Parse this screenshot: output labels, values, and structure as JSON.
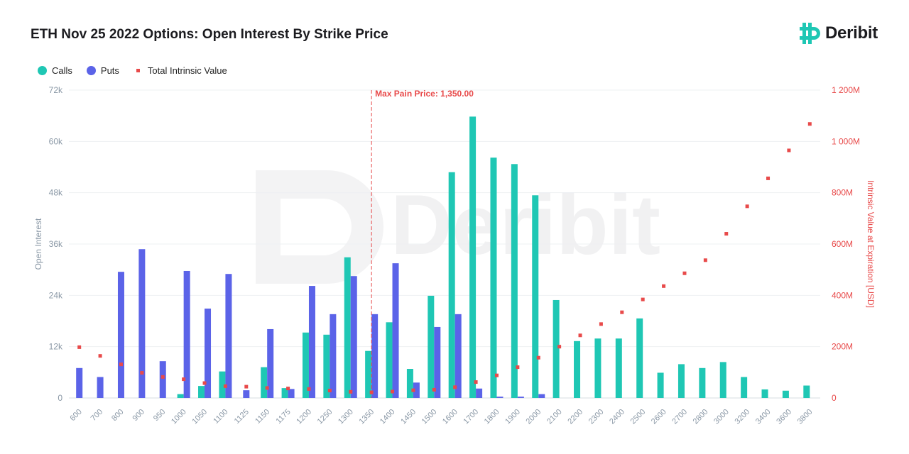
{
  "chart_data": {
    "type": "bar",
    "title": "ETH Nov 25 2022 Options: Open Interest By Strike Price",
    "brand": "Deribit",
    "categories": [
      "600",
      "700",
      "800",
      "900",
      "950",
      "1000",
      "1050",
      "1100",
      "1125",
      "1150",
      "1175",
      "1200",
      "1250",
      "1300",
      "1350",
      "1400",
      "1450",
      "1500",
      "1600",
      "1700",
      "1800",
      "1900",
      "2000",
      "2100",
      "2200",
      "2300",
      "2400",
      "2500",
      "2600",
      "2700",
      "2800",
      "3000",
      "3200",
      "3400",
      "3600",
      "3800"
    ],
    "series": [
      {
        "name": "Calls",
        "type": "bar",
        "color": "#1fc7b4",
        "axis": "left",
        "values": [
          0,
          0,
          0,
          0,
          0,
          900,
          2800,
          6200,
          0,
          7200,
          2300,
          15300,
          14800,
          32900,
          11000,
          17700,
          6800,
          23900,
          52800,
          65800,
          56200,
          54700,
          47400,
          22900,
          13300,
          13900,
          13900,
          18600,
          5900,
          7900,
          7000,
          8400,
          4900,
          2000,
          1700,
          2900
        ]
      },
      {
        "name": "Puts",
        "type": "bar",
        "color": "#5b63e8",
        "axis": "left",
        "values": [
          7000,
          4900,
          29500,
          34800,
          8600,
          29700,
          20900,
          29000,
          1800,
          16100,
          2100,
          26200,
          19600,
          28500,
          19600,
          31500,
          3600,
          16600,
          19600,
          2200,
          300,
          300,
          900,
          0,
          0,
          0,
          0,
          0,
          0,
          0,
          0,
          0,
          0,
          0,
          0,
          0
        ]
      },
      {
        "name": "Total Intrinsic Value",
        "type": "scatter",
        "color": "#e84a4a",
        "axis": "right",
        "values": [
          198,
          164,
          131,
          98,
          82,
          73,
          58,
          46,
          44,
          39,
          37,
          35,
          29,
          24,
          22,
          25,
          30,
          32,
          42,
          62,
          88,
          120,
          157,
          200,
          244,
          288,
          334,
          384,
          436,
          486,
          537,
          640,
          747,
          856,
          965,
          1068
        ]
      }
    ],
    "y_left": {
      "label": "Open Interest",
      "range": [
        0,
        72000
      ],
      "ticks": [
        "0",
        "12k",
        "24k",
        "36k",
        "48k",
        "60k",
        "72k"
      ]
    },
    "y_right": {
      "label": "Intrinsic Value at Expiration [USD]",
      "range": [
        0,
        1200
      ],
      "ticks": [
        "0",
        "200M",
        "400M",
        "600M",
        "800M",
        "1 000M",
        "1 200M"
      ]
    },
    "annotation": {
      "text": "Max Pain Price: 1,350.00",
      "category": "1350",
      "color": "#e84a4a"
    },
    "grid": true,
    "legend_position": "top-left"
  }
}
